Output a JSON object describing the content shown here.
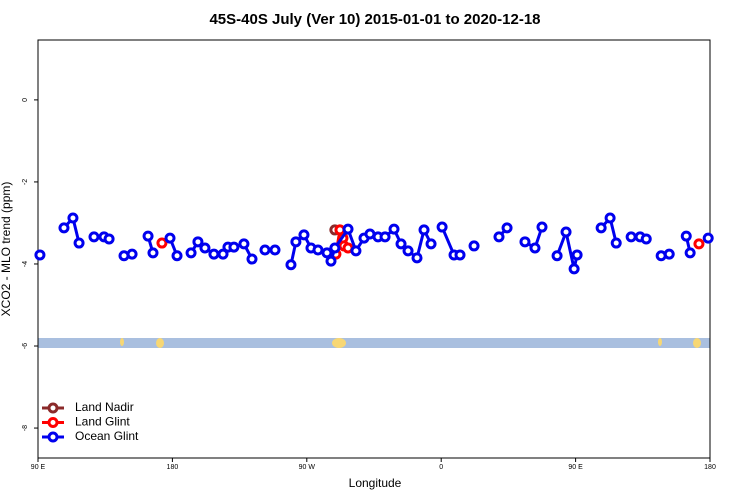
{
  "chart_data": {
    "type": "line",
    "title": "45S-40S July (Ver 10)   2015-01-01 to 2020-12-18",
    "x_label": "Longitude",
    "y_label": "XCO2 - MLO trend (ppm)",
    "xlim": [
      90,
      540
    ],
    "ylim": [
      -8.73,
      1.46
    ],
    "xticks": [
      {
        "value": 90,
        "label": "90 E"
      },
      {
        "value": 180,
        "label": "180"
      },
      {
        "value": 270,
        "label": "90 W"
      },
      {
        "value": 360,
        "label": "0"
      },
      {
        "value": 450,
        "label": "90 E"
      },
      {
        "value": 540,
        "label": "180"
      }
    ],
    "yticks": [
      0,
      -2,
      -4,
      -6,
      -8
    ],
    "legend": "bottom-left",
    "series": [
      {
        "name": "Land Nadir",
        "color": "#8b2a2a",
        "x": [
          288.8
        ],
        "values": [
          -3.17
        ]
      },
      {
        "name": "Land Glint",
        "color": "#ff0000",
        "x": [
          173.0,
          null,
          289.5,
          292.2,
          294.2,
          294.9,
          297.6,
          null,
          532.6
        ],
        "values": [
          -3.49,
          null,
          -3.76,
          -3.17,
          -3.37,
          -3.56,
          -3.61,
          null,
          -3.51
        ]
      },
      {
        "name": "Ocean Glint",
        "color": "#0000ee",
        "x": [
          91.3,
          null,
          107.4,
          113.4,
          117.5,
          null,
          127.5,
          134.2,
          137.6,
          null,
          147.6,
          153.0,
          null,
          163.7,
          167.0,
          null,
          178.4,
          183.1,
          null,
          192.5,
          197.1,
          201.8,
          207.8,
          213.9,
          217.2,
          221.2,
          227.9,
          233.3,
          null,
          242.0,
          248.7,
          null,
          259.4,
          262.7,
          268.1,
          272.8,
          277.5,
          283.5,
          286.2,
          288.8,
          297.6,
          302.9,
          308.3,
          312.3,
          317.7,
          322.4,
          328.4,
          333.1,
          337.8,
          343.8,
          348.5,
          353.2,
          null,
          360.6,
          368.6,
          372.6,
          null,
          382.0,
          null,
          398.7,
          404.1,
          null,
          416.1,
          422.8,
          427.5,
          null,
          437.6,
          443.6,
          449.0,
          451.0,
          null,
          467.1,
          473.1,
          477.2,
          null,
          487.2,
          493.2,
          497.3,
          null,
          507.3,
          512.7,
          null,
          524.1,
          526.7,
          null,
          538.8
        ],
        "values": [
          -3.78,
          null,
          -3.12,
          -2.88,
          -3.49,
          null,
          -3.34,
          -3.34,
          -3.39,
          null,
          -3.8,
          -3.76,
          null,
          -3.32,
          -3.73,
          null,
          -3.37,
          -3.8,
          null,
          -3.73,
          -3.46,
          -3.61,
          -3.76,
          -3.76,
          -3.59,
          -3.59,
          -3.51,
          -3.88,
          null,
          -3.66,
          -3.66,
          null,
          -4.02,
          -3.46,
          -3.29,
          -3.61,
          -3.66,
          -3.73,
          -3.93,
          -3.61,
          -3.15,
          -3.68,
          -3.37,
          -3.27,
          -3.34,
          -3.34,
          -3.15,
          -3.51,
          -3.68,
          -3.85,
          -3.17,
          -3.51,
          null,
          -3.1,
          -3.78,
          -3.78,
          null,
          -3.56,
          null,
          -3.34,
          -3.12,
          null,
          -3.46,
          -3.61,
          -3.1,
          null,
          -3.8,
          -3.22,
          -4.12,
          -3.78,
          null,
          -3.12,
          -2.88,
          -3.49,
          null,
          -3.34,
          -3.34,
          -3.39,
          null,
          -3.8,
          -3.76,
          null,
          -3.32,
          -3.73,
          null,
          -3.37
        ]
      }
    ]
  }
}
